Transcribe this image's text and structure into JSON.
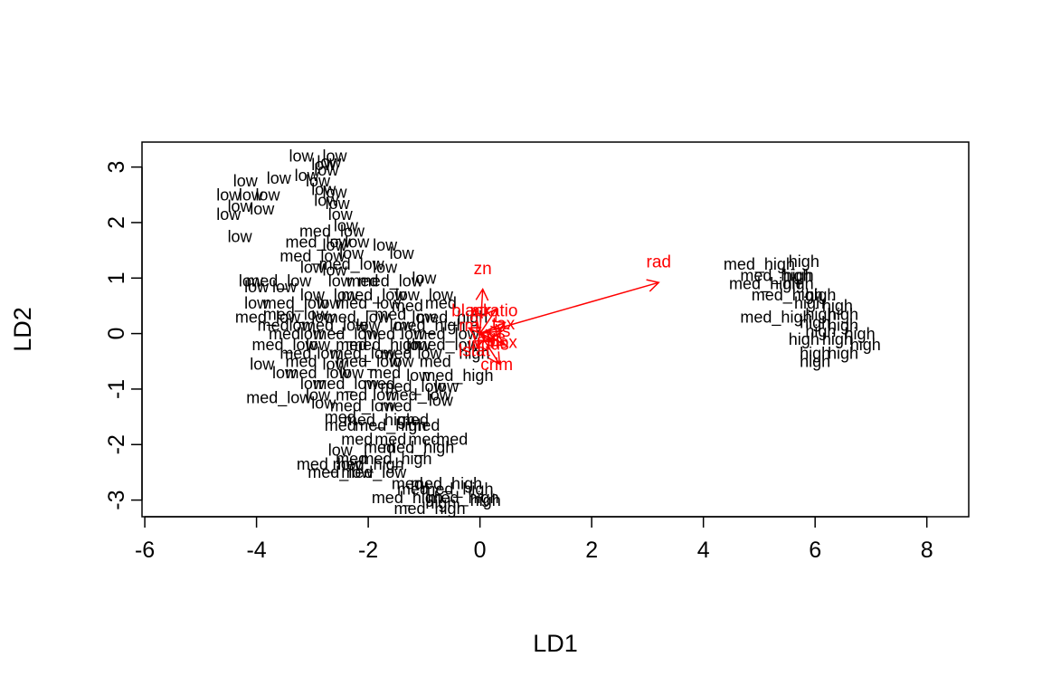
{
  "chart_data": {
    "type": "scatter",
    "title": "",
    "xlabel": "LD1",
    "ylabel": "LD2",
    "xlim": [
      -6.05,
      8.75
    ],
    "ylim": [
      -3.3,
      3.45
    ],
    "x_ticks": [
      -6,
      -4,
      -2,
      0,
      2,
      4,
      6,
      8
    ],
    "y_ticks": [
      -3,
      -2,
      -1,
      0,
      1,
      2,
      3
    ],
    "grid": false,
    "legend": "none",
    "point_color": "#000000",
    "arrow_color": "#ff0000",
    "points": [
      {
        "x": -3.2,
        "y": 3.2,
        "label": "low"
      },
      {
        "x": -2.6,
        "y": 3.2,
        "label": "low"
      },
      {
        "x": -2.8,
        "y": 3.05,
        "label": "low"
      },
      {
        "x": -2.75,
        "y": 2.95,
        "label": "low"
      },
      {
        "x": -2.7,
        "y": 3.1,
        "label": "low"
      },
      {
        "x": -4.2,
        "y": 2.75,
        "label": "low"
      },
      {
        "x": -3.6,
        "y": 2.8,
        "label": "low"
      },
      {
        "x": -3.1,
        "y": 2.85,
        "label": "low"
      },
      {
        "x": -2.9,
        "y": 2.75,
        "label": "low"
      },
      {
        "x": -2.8,
        "y": 2.6,
        "label": "low"
      },
      {
        "x": -2.6,
        "y": 2.55,
        "label": "low"
      },
      {
        "x": -4.5,
        "y": 2.5,
        "label": "low"
      },
      {
        "x": -4.1,
        "y": 2.5,
        "label": "low"
      },
      {
        "x": -3.8,
        "y": 2.5,
        "label": "low"
      },
      {
        "x": -2.75,
        "y": 2.4,
        "label": "low"
      },
      {
        "x": -2.55,
        "y": 2.35,
        "label": "low"
      },
      {
        "x": -4.3,
        "y": 2.3,
        "label": "low"
      },
      {
        "x": -3.9,
        "y": 2.25,
        "label": "low"
      },
      {
        "x": -4.5,
        "y": 2.15,
        "label": "low"
      },
      {
        "x": -2.5,
        "y": 2.15,
        "label": "low"
      },
      {
        "x": -4.3,
        "y": 1.75,
        "label": "low"
      },
      {
        "x": -2.4,
        "y": 1.95,
        "label": "low"
      },
      {
        "x": -2.65,
        "y": 1.85,
        "label": "med_low"
      },
      {
        "x": -2.9,
        "y": 1.65,
        "label": "med_low"
      },
      {
        "x": -2.6,
        "y": 1.6,
        "label": "low"
      },
      {
        "x": -2.2,
        "y": 1.65,
        "label": "low"
      },
      {
        "x": -1.7,
        "y": 1.6,
        "label": "low"
      },
      {
        "x": -2.3,
        "y": 1.45,
        "label": "low"
      },
      {
        "x": -1.4,
        "y": 1.45,
        "label": "low"
      },
      {
        "x": -3.0,
        "y": 1.4,
        "label": "med_low"
      },
      {
        "x": -2.3,
        "y": 1.25,
        "label": "med_low"
      },
      {
        "x": -3.0,
        "y": 1.2,
        "label": "low"
      },
      {
        "x": -2.6,
        "y": 1.15,
        "label": "low"
      },
      {
        "x": -1.7,
        "y": 1.2,
        "label": "low"
      },
      {
        "x": -4.1,
        "y": 0.95,
        "label": "low"
      },
      {
        "x": -3.6,
        "y": 0.95,
        "label": "med_low"
      },
      {
        "x": -2.5,
        "y": 0.95,
        "label": "low"
      },
      {
        "x": -2.1,
        "y": 0.95,
        "label": "med"
      },
      {
        "x": -1.6,
        "y": 0.95,
        "label": "med_low"
      },
      {
        "x": -1.0,
        "y": 1.0,
        "label": "low"
      },
      {
        "x": -4.0,
        "y": 0.85,
        "label": "low"
      },
      {
        "x": -3.5,
        "y": 0.85,
        "label": "low"
      },
      {
        "x": -3.0,
        "y": 0.7,
        "label": "low"
      },
      {
        "x": -2.4,
        "y": 0.7,
        "label": "low"
      },
      {
        "x": -1.9,
        "y": 0.7,
        "label": "med_low"
      },
      {
        "x": -1.3,
        "y": 0.7,
        "label": "low"
      },
      {
        "x": -0.7,
        "y": 0.7,
        "label": "low"
      },
      {
        "x": -4.0,
        "y": 0.55,
        "label": "low"
      },
      {
        "x": -3.3,
        "y": 0.55,
        "label": "med_low"
      },
      {
        "x": -2.7,
        "y": 0.55,
        "label": "low"
      },
      {
        "x": -2.0,
        "y": 0.55,
        "label": "med_low"
      },
      {
        "x": -1.3,
        "y": 0.5,
        "label": "med"
      },
      {
        "x": -0.7,
        "y": 0.55,
        "label": "med"
      },
      {
        "x": -3.8,
        "y": 0.3,
        "label": "med_low"
      },
      {
        "x": -3.3,
        "y": 0.35,
        "label": "med_low"
      },
      {
        "x": -2.8,
        "y": 0.3,
        "label": "low"
      },
      {
        "x": -2.2,
        "y": 0.3,
        "label": "med_low"
      },
      {
        "x": -1.6,
        "y": 0.35,
        "label": "med"
      },
      {
        "x": -1.0,
        "y": 0.3,
        "label": "low"
      },
      {
        "x": -0.5,
        "y": 0.3,
        "label": "med_high"
      },
      {
        "x": -3.7,
        "y": 0.15,
        "label": "med"
      },
      {
        "x": -3.2,
        "y": 0.15,
        "label": "low"
      },
      {
        "x": -2.6,
        "y": 0.15,
        "label": "med_low"
      },
      {
        "x": -2.0,
        "y": 0.15,
        "label": "low"
      },
      {
        "x": -1.4,
        "y": 0.15,
        "label": "low"
      },
      {
        "x": -0.9,
        "y": 0.15,
        "label": "med_high"
      },
      {
        "x": -3.5,
        "y": 0.0,
        "label": "med"
      },
      {
        "x": -3.0,
        "y": 0.0,
        "label": "low"
      },
      {
        "x": -2.4,
        "y": 0.0,
        "label": "med_low"
      },
      {
        "x": -1.8,
        "y": 0.0,
        "label": "med"
      },
      {
        "x": -1.2,
        "y": 0.0,
        "label": "low"
      },
      {
        "x": -0.6,
        "y": 0.0,
        "label": "med_low"
      },
      {
        "x": -3.5,
        "y": -0.2,
        "label": "med_low"
      },
      {
        "x": -2.9,
        "y": -0.2,
        "label": "low"
      },
      {
        "x": -2.3,
        "y": -0.2,
        "label": "med"
      },
      {
        "x": -1.7,
        "y": -0.2,
        "label": "med_high"
      },
      {
        "x": -1.1,
        "y": -0.2,
        "label": "low"
      },
      {
        "x": -0.6,
        "y": -0.2,
        "label": "med_low"
      },
      {
        "x": -3.3,
        "y": -0.35,
        "label": "med"
      },
      {
        "x": -2.7,
        "y": -0.35,
        "label": "low"
      },
      {
        "x": -2.1,
        "y": -0.35,
        "label": "med_low"
      },
      {
        "x": -1.5,
        "y": -0.35,
        "label": "med"
      },
      {
        "x": -0.9,
        "y": -0.35,
        "label": "low"
      },
      {
        "x": -0.1,
        "y": -0.35,
        "label": "high"
      },
      {
        "x": -3.9,
        "y": -0.55,
        "label": "low"
      },
      {
        "x": -3.2,
        "y": -0.5,
        "label": "med"
      },
      {
        "x": -2.6,
        "y": -0.55,
        "label": "low"
      },
      {
        "x": -2.0,
        "y": -0.5,
        "label": "med_low"
      },
      {
        "x": -1.4,
        "y": -0.5,
        "label": "low"
      },
      {
        "x": -0.8,
        "y": -0.5,
        "label": "med"
      },
      {
        "x": -3.5,
        "y": -0.7,
        "label": "low"
      },
      {
        "x": -2.9,
        "y": -0.7,
        "label": "med_low"
      },
      {
        "x": -2.3,
        "y": -0.7,
        "label": "low"
      },
      {
        "x": -1.7,
        "y": -0.7,
        "label": "med"
      },
      {
        "x": -1.1,
        "y": -0.75,
        "label": "low"
      },
      {
        "x": -0.4,
        "y": -0.75,
        "label": "med_high"
      },
      {
        "x": -3.0,
        "y": -0.9,
        "label": "low"
      },
      {
        "x": -2.4,
        "y": -0.9,
        "label": "med_low"
      },
      {
        "x": -1.8,
        "y": -0.9,
        "label": "med"
      },
      {
        "x": -1.2,
        "y": -0.95,
        "label": "med_low"
      },
      {
        "x": -0.6,
        "y": -0.95,
        "label": "low"
      },
      {
        "x": -3.6,
        "y": -1.15,
        "label": "med_low"
      },
      {
        "x": -2.9,
        "y": -1.1,
        "label": "low"
      },
      {
        "x": -2.3,
        "y": -1.1,
        "label": "med"
      },
      {
        "x": -1.7,
        "y": -1.1,
        "label": "low"
      },
      {
        "x": -1.1,
        "y": -1.1,
        "label": "med_low"
      },
      {
        "x": -0.7,
        "y": -1.2,
        "label": "low"
      },
      {
        "x": -2.8,
        "y": -1.25,
        "label": "low"
      },
      {
        "x": -2.1,
        "y": -1.3,
        "label": "med_low"
      },
      {
        "x": -1.5,
        "y": -1.3,
        "label": "med"
      },
      {
        "x": -2.5,
        "y": -1.5,
        "label": "med"
      },
      {
        "x": -1.8,
        "y": -1.55,
        "label": "med_high"
      },
      {
        "x": -1.2,
        "y": -1.55,
        "label": "med"
      },
      {
        "x": -2.5,
        "y": -1.65,
        "label": "med"
      },
      {
        "x": -1.6,
        "y": -1.65,
        "label": "med_high"
      },
      {
        "x": -1.0,
        "y": -1.65,
        "label": "med"
      },
      {
        "x": -2.2,
        "y": -1.9,
        "label": "med"
      },
      {
        "x": -1.6,
        "y": -1.9,
        "label": "med"
      },
      {
        "x": -1.0,
        "y": -1.9,
        "label": "med"
      },
      {
        "x": -0.5,
        "y": -1.9,
        "label": "med"
      },
      {
        "x": -2.5,
        "y": -2.1,
        "label": "low"
      },
      {
        "x": -1.8,
        "y": -2.05,
        "label": "med"
      },
      {
        "x": -1.1,
        "y": -2.05,
        "label": "med_high"
      },
      {
        "x": -2.3,
        "y": -2.25,
        "label": "med"
      },
      {
        "x": -1.5,
        "y": -2.25,
        "label": "med_high"
      },
      {
        "x": -2.7,
        "y": -2.35,
        "label": "med_low"
      },
      {
        "x": -2.0,
        "y": -2.35,
        "label": "med_high"
      },
      {
        "x": -2.5,
        "y": -2.5,
        "label": "med_low"
      },
      {
        "x": -1.9,
        "y": -2.5,
        "label": "med_low"
      },
      {
        "x": -1.3,
        "y": -2.7,
        "label": "med"
      },
      {
        "x": -0.6,
        "y": -2.7,
        "label": "med_high"
      },
      {
        "x": -1.2,
        "y": -2.8,
        "label": "med"
      },
      {
        "x": -0.4,
        "y": -2.8,
        "label": "med_high"
      },
      {
        "x": -1.3,
        "y": -2.95,
        "label": "med_high"
      },
      {
        "x": -0.3,
        "y": -2.95,
        "label": "med_high"
      },
      {
        "x": 0.1,
        "y": -3.0,
        "label": "high"
      },
      {
        "x": -0.7,
        "y": -3.05,
        "label": "high"
      },
      {
        "x": -0.9,
        "y": -3.15,
        "label": "med_high"
      },
      {
        "x": 5.0,
        "y": 1.25,
        "label": "med_high"
      },
      {
        "x": 5.8,
        "y": 1.3,
        "label": "high"
      },
      {
        "x": 5.3,
        "y": 1.05,
        "label": "med_high"
      },
      {
        "x": 5.7,
        "y": 1.05,
        "label": "high"
      },
      {
        "x": 5.1,
        "y": 0.9,
        "label": "med_high"
      },
      {
        "x": 5.7,
        "y": 0.9,
        "label": "high"
      },
      {
        "x": 5.5,
        "y": 0.7,
        "label": "med_high"
      },
      {
        "x": 6.1,
        "y": 0.7,
        "label": "high"
      },
      {
        "x": 5.9,
        "y": 0.55,
        "label": "high"
      },
      {
        "x": 6.4,
        "y": 0.5,
        "label": "high"
      },
      {
        "x": 5.3,
        "y": 0.3,
        "label": "med_high"
      },
      {
        "x": 6.1,
        "y": 0.35,
        "label": "high"
      },
      {
        "x": 6.5,
        "y": 0.35,
        "label": "high"
      },
      {
        "x": 6.0,
        "y": 0.2,
        "label": "high"
      },
      {
        "x": 6.5,
        "y": 0.15,
        "label": "high"
      },
      {
        "x": 6.1,
        "y": 0.05,
        "label": "high"
      },
      {
        "x": 6.8,
        "y": 0.0,
        "label": "high"
      },
      {
        "x": 5.8,
        "y": -0.1,
        "label": "high"
      },
      {
        "x": 6.4,
        "y": -0.1,
        "label": "high"
      },
      {
        "x": 6.9,
        "y": -0.2,
        "label": "high"
      },
      {
        "x": 6.0,
        "y": -0.35,
        "label": "high"
      },
      {
        "x": 6.5,
        "y": -0.35,
        "label": "high"
      },
      {
        "x": 6.0,
        "y": -0.5,
        "label": "high"
      }
    ],
    "arrows": [
      {
        "label": "rad",
        "x": 3.2,
        "y": 0.92,
        "label_x": 3.2,
        "label_y": 1.3
      },
      {
        "label": "zn",
        "x": 0.05,
        "y": 0.8,
        "label_x": 0.05,
        "label_y": 1.18
      },
      {
        "label": "ptratio",
        "x": 0.3,
        "y": 0.45,
        "label_x": 0.25,
        "label_y": 0.42
      },
      {
        "label": "black",
        "x": -0.1,
        "y": 0.45,
        "label_x": -0.15,
        "label_y": 0.42
      },
      {
        "label": "tax",
        "x": 0.45,
        "y": 0.2,
        "label_x": 0.42,
        "label_y": 0.18
      },
      {
        "label": "dis",
        "x": 0.4,
        "y": 0.05,
        "label_x": 0.35,
        "label_y": 0.05
      },
      {
        "label": "age",
        "x": 0.25,
        "y": -0.1,
        "label_x": 0.2,
        "label_y": -0.05
      },
      {
        "label": "nox",
        "x": 0.45,
        "y": -0.2,
        "label_x": 0.42,
        "label_y": -0.15
      },
      {
        "label": "indus",
        "x": 0.2,
        "y": -0.15,
        "label_x": 0.15,
        "label_y": -0.18
      },
      {
        "label": "lstat",
        "x": -0.05,
        "y": -0.25,
        "label_x": -0.1,
        "label_y": -0.3
      },
      {
        "label": "crim",
        "x": 0.35,
        "y": -0.55,
        "label_x": 0.3,
        "label_y": -0.55
      },
      {
        "label": "rm",
        "x": -0.2,
        "y": 0.1,
        "label_x": -0.2,
        "label_y": 0.15
      }
    ]
  }
}
